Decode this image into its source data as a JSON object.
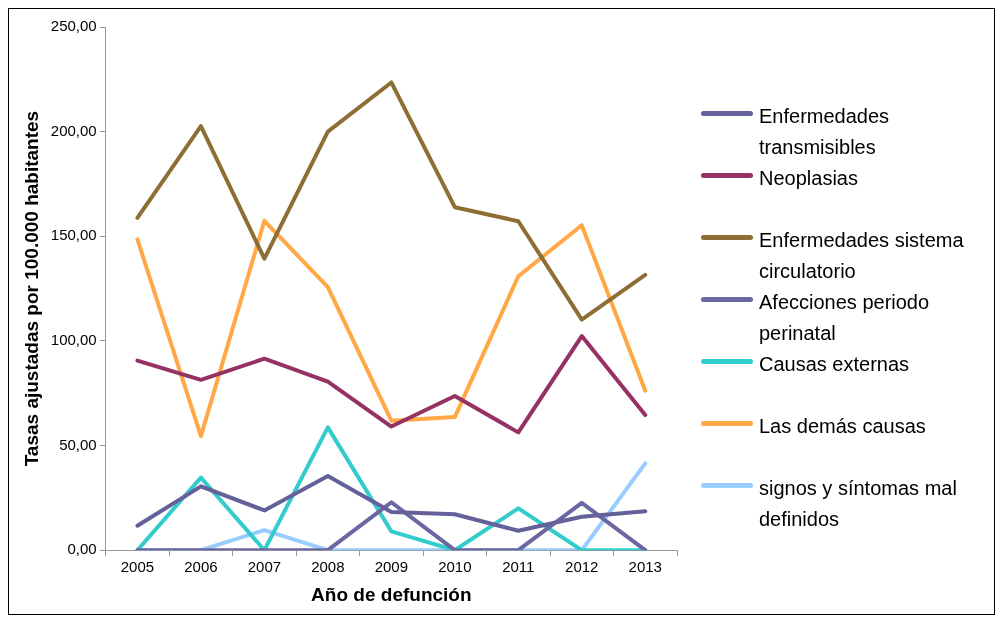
{
  "chart_data": {
    "type": "line",
    "xlabel": "Año de defunción",
    "ylabel": "Tasas ajustadas por 100.000 habitantes",
    "categories": [
      "2005",
      "2006",
      "2007",
      "2008",
      "2009",
      "2010",
      "2011",
      "2012",
      "2013"
    ],
    "ylim": [
      0,
      250
    ],
    "yticks": [
      {
        "value": 0,
        "label": "0,00"
      },
      {
        "value": 50,
        "label": "50,00"
      },
      {
        "value": 100,
        "label": "100,00"
      },
      {
        "value": 150,
        "label": "150,00"
      },
      {
        "value": 200,
        "label": "200,00"
      },
      {
        "value": 250,
        "label": "250,00"
      }
    ],
    "grid": false,
    "legend": "right",
    "marker": "none",
    "series": [
      {
        "name": "Enfermedades transmisibles",
        "color": "#64609a",
        "values": [
          11.7,
          30.5,
          19,
          35.4,
          18.3,
          17.2,
          9.3,
          16,
          18.6
        ]
      },
      {
        "name": "Neoplasias",
        "color": "#953163",
        "values": [
          90.6,
          81.4,
          91.5,
          80.6,
          59.1,
          73.7,
          56.3,
          102.3,
          64.6
        ]
      },
      {
        "name": "Enfermedades sistema circulatorio",
        "color": "#8d6e35",
        "values": [
          158.8,
          202.6,
          139.3,
          200,
          223.5,
          163.9,
          157.2,
          110.2,
          131.6
        ]
      },
      {
        "name": "Afecciones periodo perinatal",
        "color": "#6a67a3",
        "values": [
          0,
          0,
          0,
          0,
          22.9,
          0,
          0,
          22.6,
          0
        ]
      },
      {
        "name": "Causas externas",
        "color": "#33cccc",
        "values": [
          0,
          34.7,
          0,
          58.7,
          9,
          0,
          20,
          0,
          0
        ]
      },
      {
        "name": "Las demás causas",
        "color": "#ffa845",
        "values": [
          148.5,
          54.5,
          157.4,
          125.7,
          61.9,
          63.6,
          130.9,
          155.3,
          76.2
        ]
      },
      {
        "name": "signos y síntomas mal definidos",
        "color": "#99ccff",
        "values": [
          0,
          0,
          9.6,
          0,
          0,
          0,
          0,
          0,
          41.5
        ]
      }
    ]
  }
}
